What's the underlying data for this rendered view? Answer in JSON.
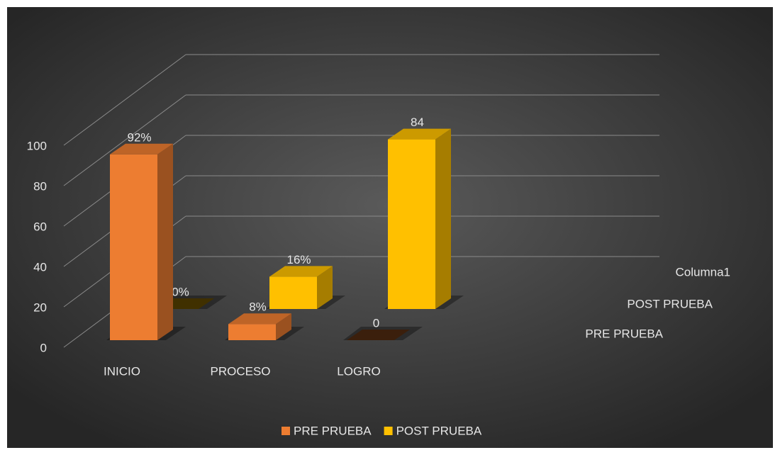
{
  "chart_data": {
    "type": "bar3d",
    "categories": [
      "INICIO",
      "PROCESO",
      "LOGRO"
    ],
    "series": [
      {
        "name": "PRE PRUEBA",
        "color": "#ed7d31",
        "values": [
          92,
          8,
          0
        ],
        "value_labels": [
          "92%",
          "8%",
          "0"
        ]
      },
      {
        "name": "POST PRUEBA",
        "color": "#ffc000",
        "values": [
          0,
          16,
          84
        ],
        "value_labels": [
          "0%",
          "16%",
          "84"
        ]
      }
    ],
    "depth_axis_labels": [
      "PRE PRUEBA",
      "POST PRUEBA",
      "Columna1"
    ],
    "ylim": [
      0,
      100
    ],
    "yticks": [
      0,
      20,
      40,
      60,
      80,
      100
    ],
    "grid": true,
    "legend": "bottom"
  }
}
